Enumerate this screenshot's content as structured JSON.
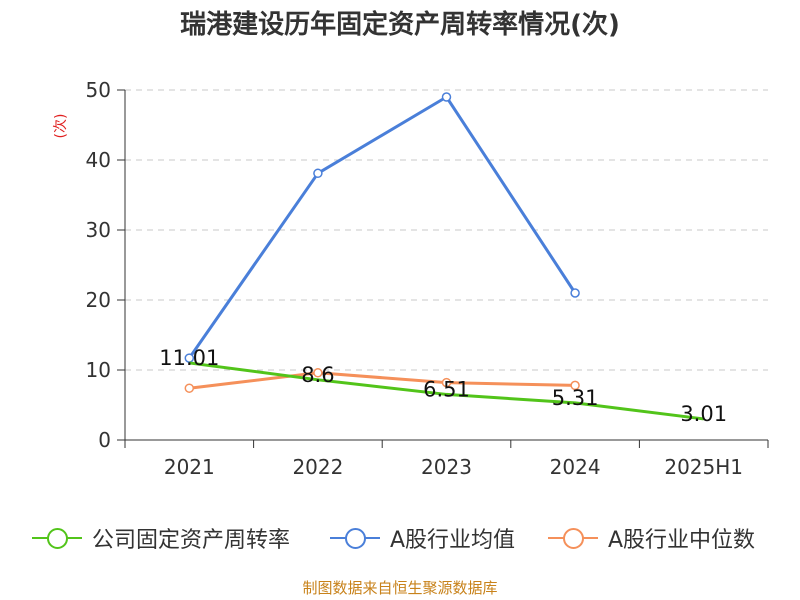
{
  "chart_data": {
    "type": "line",
    "title": "瑞港建设历年固定资产周转率情况(次)",
    "ylabel": "(次)",
    "xlabel": "",
    "categories": [
      "2021",
      "2022",
      "2023",
      "2024",
      "2025H1"
    ],
    "ylim": [
      0,
      50
    ],
    "yticks": [
      0,
      10,
      20,
      30,
      40,
      50
    ],
    "grid": true,
    "legend_position": "bottom",
    "series": [
      {
        "name": "公司固定资产周转率",
        "color": "#52c41a",
        "values": [
          11.01,
          8.6,
          6.51,
          5.31,
          3.01
        ],
        "labels": [
          "11.01",
          "8.6",
          "6.51",
          "5.31",
          "3.01"
        ]
      },
      {
        "name": "A股行业均值",
        "color": "#4a7fd9",
        "values": [
          11.7,
          38.1,
          49.0,
          21.0,
          null
        ]
      },
      {
        "name": "A股行业中位数",
        "color": "#f5905a",
        "values": [
          7.4,
          9.6,
          8.2,
          7.8,
          null
        ]
      }
    ]
  },
  "footer": {
    "source": "制图数据来自恒生聚源数据库"
  }
}
